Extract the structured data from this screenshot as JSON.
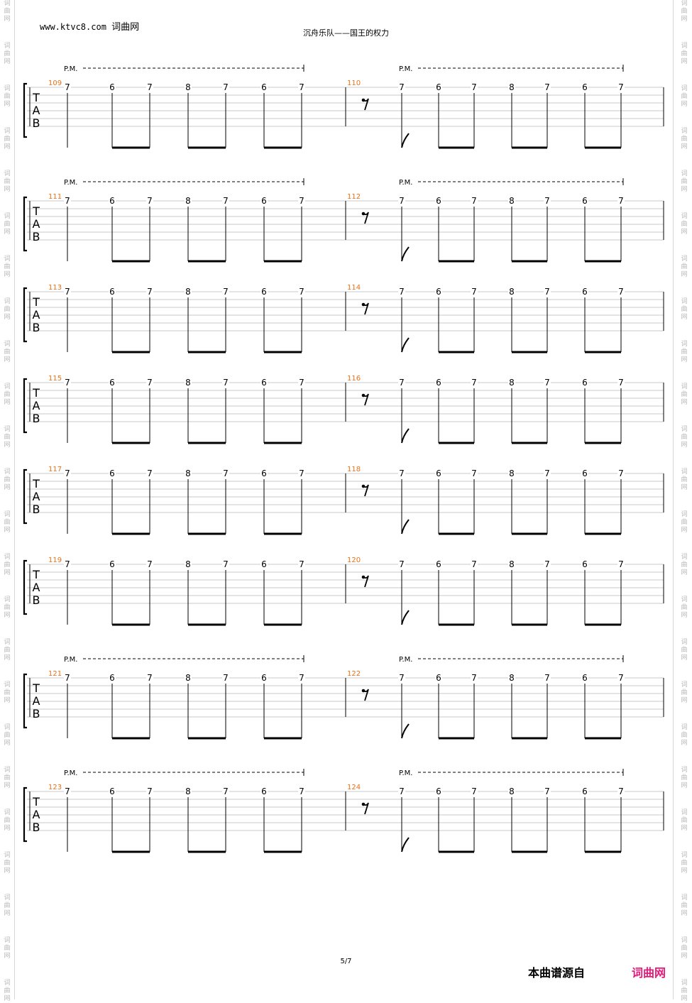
{
  "header": {
    "site_url": "www.ktvc8.com",
    "site_name": "词曲网",
    "title": "沉舟乐队——国王的权力"
  },
  "watermark": {
    "glyphs": "词\n曲\n网"
  },
  "tab": {
    "clef": [
      "T",
      "A",
      "B"
    ],
    "palm_mute_label": "P.M.",
    "measure_a_frets": [
      7,
      6,
      7,
      8,
      7,
      6,
      7
    ],
    "measure_b_frets": [
      7,
      6,
      7,
      8,
      7,
      6,
      7
    ],
    "measure_b_lead": "rest",
    "systems": [
      {
        "measures": [
          109,
          110
        ],
        "palm_mute": true
      },
      {
        "measures": [
          111,
          112
        ],
        "palm_mute": true
      },
      {
        "measures": [
          113,
          114
        ],
        "palm_mute": false
      },
      {
        "measures": [
          115,
          116
        ],
        "palm_mute": false
      },
      {
        "measures": [
          117,
          118
        ],
        "palm_mute": false
      },
      {
        "measures": [
          119,
          120
        ],
        "palm_mute": false
      },
      {
        "measures": [
          121,
          122
        ],
        "palm_mute": true
      },
      {
        "measures": [
          123,
          124
        ],
        "palm_mute": true
      }
    ],
    "colors": {
      "measure_number": "#e8721c",
      "staff_line": "#c8c8c8",
      "ink": "#000000"
    }
  },
  "footer": {
    "page": "5/7",
    "source_label": "本曲谱源自",
    "source_brand": "词曲网"
  }
}
